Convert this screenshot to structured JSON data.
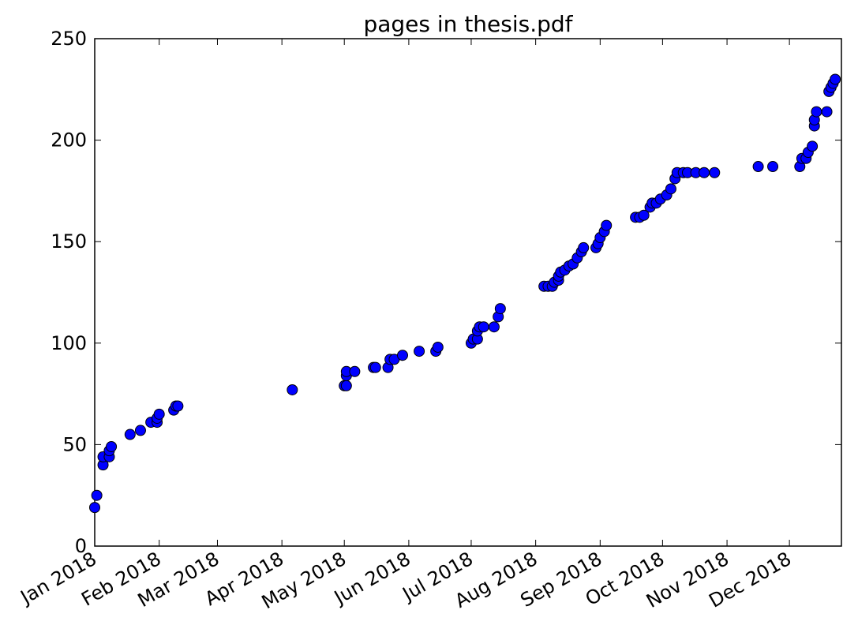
{
  "chart_data": {
    "type": "scatter",
    "title": "pages in thesis.pdf",
    "color": "#0000ff",
    "x": [
      "2018-01-01",
      "2018-01-02",
      "2018-01-05",
      "2018-01-05",
      "2018-01-08",
      "2018-01-08",
      "2018-01-09",
      "2018-01-18",
      "2018-01-23",
      "2018-01-28",
      "2018-01-31",
      "2018-01-31",
      "2018-02-01",
      "2018-02-08",
      "2018-02-09",
      "2018-02-10",
      "2018-04-06",
      "2018-05-01",
      "2018-05-02",
      "2018-05-02",
      "2018-05-02",
      "2018-05-06",
      "2018-05-15",
      "2018-05-16",
      "2018-05-22",
      "2018-05-23",
      "2018-05-25",
      "2018-05-29",
      "2018-06-06",
      "2018-06-14",
      "2018-06-15",
      "2018-07-01",
      "2018-07-02",
      "2018-07-04",
      "2018-07-04",
      "2018-07-05",
      "2018-07-07",
      "2018-07-12",
      "2018-07-14",
      "2018-07-15",
      "2018-08-05",
      "2018-08-07",
      "2018-08-09",
      "2018-08-10",
      "2018-08-12",
      "2018-08-12",
      "2018-08-13",
      "2018-08-15",
      "2018-08-17",
      "2018-08-19",
      "2018-08-21",
      "2018-08-23",
      "2018-08-24",
      "2018-08-30",
      "2018-08-31",
      "2018-09-01",
      "2018-09-03",
      "2018-09-04",
      "2018-09-18",
      "2018-09-20",
      "2018-09-22",
      "2018-09-25",
      "2018-09-26",
      "2018-09-28",
      "2018-09-30",
      "2018-10-03",
      "2018-10-05",
      "2018-10-07",
      "2018-10-08",
      "2018-10-11",
      "2018-10-13",
      "2018-10-17",
      "2018-10-21",
      "2018-10-26",
      "2018-11-16",
      "2018-11-23",
      "2018-12-06",
      "2018-12-07",
      "2018-12-09",
      "2018-12-10",
      "2018-12-12",
      "2018-12-13",
      "2018-12-13",
      "2018-12-14",
      "2018-12-19",
      "2018-12-20",
      "2018-12-21",
      "2018-12-22",
      "2018-12-23"
    ],
    "values": [
      19,
      25,
      40,
      44,
      44,
      47,
      49,
      55,
      57,
      61,
      61,
      63,
      65,
      67,
      69,
      69,
      77,
      79,
      79,
      84,
      86,
      86,
      88,
      88,
      88,
      92,
      92,
      94,
      96,
      96,
      98,
      100,
      102,
      102,
      106,
      108,
      108,
      108,
      113,
      117,
      128,
      128,
      128,
      130,
      131,
      133,
      135,
      136,
      138,
      139,
      142,
      145,
      147,
      147,
      149,
      152,
      155,
      158,
      162,
      162,
      163,
      167,
      169,
      169,
      171,
      173,
      176,
      181,
      184,
      184,
      184,
      184,
      184,
      184,
      187,
      187,
      187,
      191,
      191,
      194,
      197,
      207,
      210,
      214,
      214,
      224,
      226,
      228,
      230
    ],
    "xlim": [
      "2018-01-01",
      "2018-12-26"
    ],
    "xticks": [
      {
        "value": "2018-01-01",
        "label": "Jan 2018"
      },
      {
        "value": "2018-02-01",
        "label": "Feb 2018"
      },
      {
        "value": "2018-03-01",
        "label": "Mar 2018"
      },
      {
        "value": "2018-04-01",
        "label": "Apr 2018"
      },
      {
        "value": "2018-05-01",
        "label": "May 2018"
      },
      {
        "value": "2018-06-01",
        "label": "Jun 2018"
      },
      {
        "value": "2018-07-01",
        "label": "Jul 2018"
      },
      {
        "value": "2018-08-01",
        "label": "Aug 2018"
      },
      {
        "value": "2018-09-01",
        "label": "Sep 2018"
      },
      {
        "value": "2018-10-01",
        "label": "Oct 2018"
      },
      {
        "value": "2018-11-01",
        "label": "Nov 2018"
      },
      {
        "value": "2018-12-01",
        "label": "Dec 2018"
      }
    ],
    "ylim": [
      0,
      250
    ],
    "yticks": [
      0,
      50,
      100,
      150,
      200,
      250
    ]
  }
}
